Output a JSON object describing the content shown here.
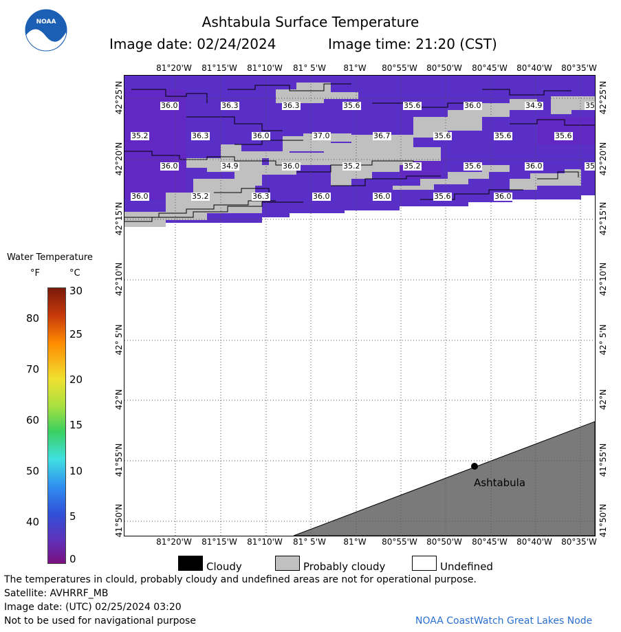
{
  "header": {
    "title": "Ashtabula Surface Temperature",
    "image_date": "Image date: 02/24/2024",
    "image_time": "Image time: 21:20 (CST)"
  },
  "logo": {
    "text": "NOAA"
  },
  "map": {
    "lon_labels": [
      "81°20'W",
      "81°15'W",
      "81°10'W",
      "81° 5'W",
      "81°W",
      "80°55'W",
      "80°50'W",
      "80°45'W",
      "80°40'W",
      "80°35'W"
    ],
    "lat_labels": [
      "42°25'N",
      "42°20'N",
      "42°15'N",
      "42°10'N",
      "42° 5'N",
      "42°N",
      "41°55'N",
      "41°50'N"
    ],
    "city": "Ashtabula",
    "temps": [
      "36.0",
      "36.3",
      "36.3",
      "35.6",
      "35.6",
      "36.0",
      "34.9",
      "35",
      "35.2",
      "36.3",
      "36.0",
      "37.0",
      "36.7",
      "35.6",
      "35.6",
      "35.6",
      "36.0",
      "34.9",
      "36.0",
      "35.2",
      "35.2",
      "35.6",
      "36.0",
      "35",
      "36.0",
      "35.2",
      "36.3",
      "36.0",
      "36.0",
      "35.6",
      "36.0"
    ]
  },
  "colorbar": {
    "title": "Water Temperature",
    "unit_f": "°F",
    "unit_c": "°C",
    "f_ticks": [
      "80",
      "70",
      "60",
      "50",
      "40"
    ],
    "c_ticks": [
      "30",
      "25",
      "20",
      "15",
      "10",
      "5",
      "0"
    ]
  },
  "legend": {
    "cloudy": "Cloudy",
    "probably_cloudy": "Probably cloudy",
    "undefined": "Undefined",
    "colors": {
      "cloudy": "#000000",
      "probably_cloudy": "#c0c0c0",
      "undefined": "#ffffff",
      "land": "#7a7a7a",
      "water": "#5a2fc8"
    }
  },
  "footer": {
    "disclaimer": "The temperatures in clould, probably cloudy and undefined areas are not for operational purpose.",
    "satellite": "Satellite: AVHRRF_MB",
    "utc_date": "Image date: (UTC) 02/25/2024  03:20",
    "nav_warning": "Not to be used for navigational purpose",
    "credit": "NOAA CoastWatch Great Lakes Node"
  }
}
